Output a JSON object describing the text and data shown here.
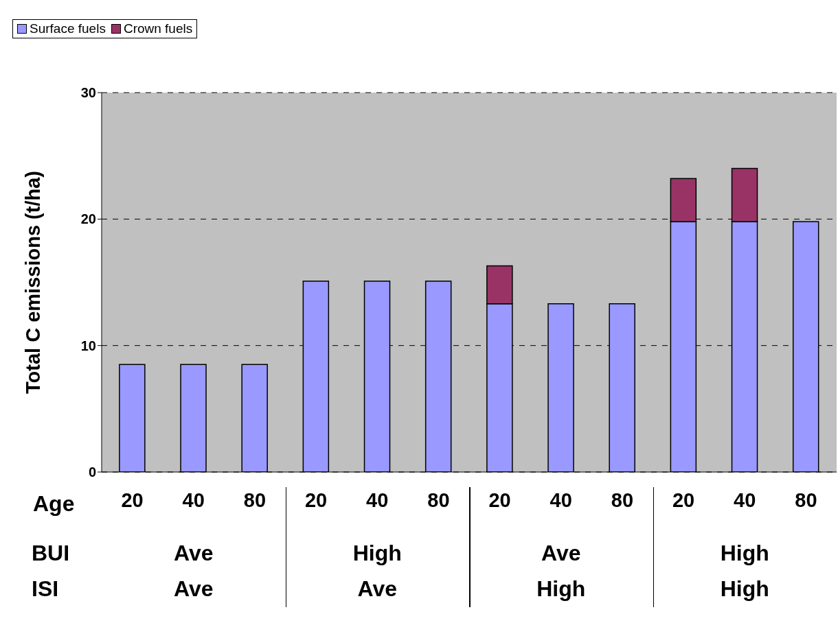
{
  "chart_data": {
    "type": "bar",
    "stacked": true,
    "xlabel": "Age",
    "ylabel": "Total C emissions (t/ha)",
    "categories": [
      "20",
      "40",
      "80",
      "20",
      "40",
      "80",
      "20",
      "40",
      "80",
      "20",
      "40",
      "80"
    ],
    "series": [
      {
        "name": "Surface fuels",
        "color": "#9999ff",
        "values": [
          8.5,
          8.5,
          8.5,
          15.1,
          15.1,
          15.1,
          13.3,
          13.3,
          13.3,
          19.8,
          19.8,
          19.8
        ]
      },
      {
        "name": "Crown fuels",
        "color": "#993366",
        "values": [
          null,
          null,
          null,
          null,
          null,
          null,
          3.0,
          null,
          null,
          3.4,
          4.2,
          null
        ]
      }
    ],
    "ylim": [
      0,
      30
    ],
    "yticks": [
      0,
      10,
      20,
      30
    ],
    "grid": "y",
    "legend": "top",
    "annotations": [
      "BUI",
      "ISI",
      "Ave",
      "Ave",
      "High",
      "Ave",
      "Ave",
      "High",
      "High",
      "High"
    ]
  }
}
